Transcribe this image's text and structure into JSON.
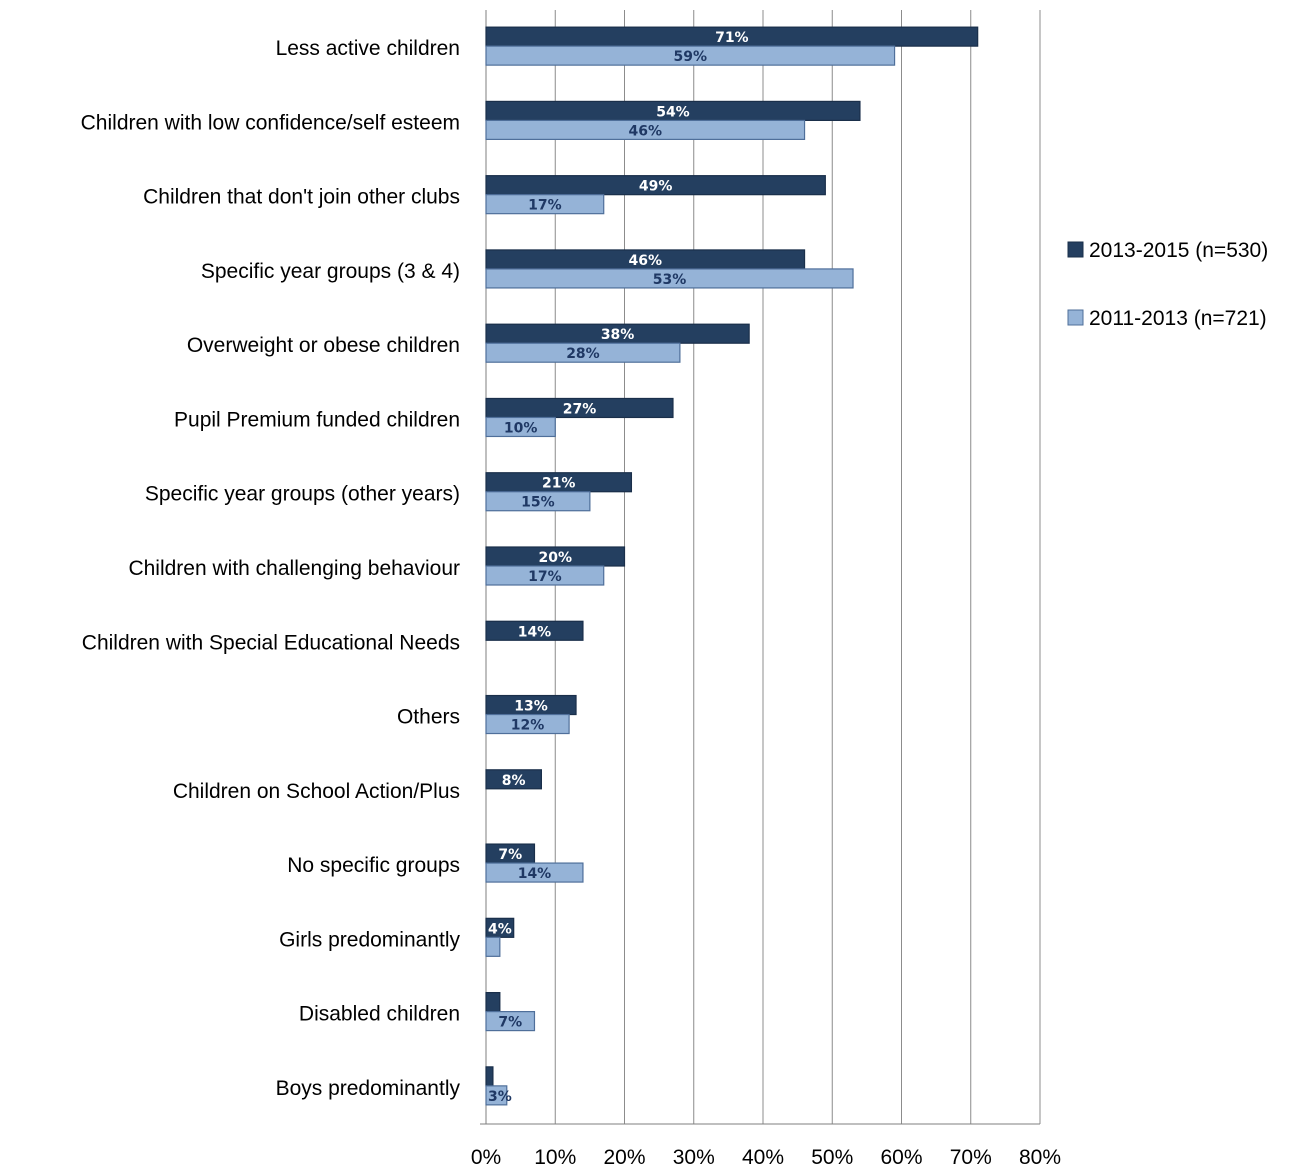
{
  "chart_data": {
    "type": "bar",
    "orientation": "horizontal",
    "categories": [
      "Less active children",
      "Children with low confidence/self esteem",
      "Children that don't join other clubs",
      "Specific year groups (3 & 4)",
      "Overweight or obese children",
      "Pupil Premium funded children",
      "Specific year groups (other years)",
      "Children with challenging behaviour",
      "Children with Special Educational Needs",
      "Others",
      "Children on School Action/Plus",
      "No specific groups",
      "Girls predominantly",
      "Disabled children",
      "Boys predominantly"
    ],
    "series": [
      {
        "name": "2013-2015 (n=530)",
        "color": "#243f60",
        "label_color": "#ffffff",
        "values": [
          71,
          54,
          49,
          46,
          38,
          27,
          21,
          20,
          14,
          13,
          8,
          7,
          4,
          2,
          1
        ],
        "labels": [
          "71%",
          "54%",
          "49%",
          "46%",
          "38%",
          "27%",
          "21%",
          "20%",
          "14%",
          "13%",
          "8%",
          "7%",
          "4%",
          "",
          ""
        ]
      },
      {
        "name": "2011-2013 (n=721)",
        "color": "#95b3d7",
        "label_color": "#1f3864",
        "values": [
          59,
          46,
          17,
          53,
          28,
          10,
          15,
          17,
          0,
          12,
          0,
          14,
          2,
          7,
          3
        ],
        "labels": [
          "59%",
          "46%",
          "17%",
          "53%",
          "28%",
          "10%",
          "15%",
          "17%",
          "",
          "12%",
          "",
          "14%",
          "",
          "7%",
          "3%"
        ]
      }
    ],
    "xlim": [
      0,
      80
    ],
    "x_ticks": [
      "0%",
      "10%",
      "20%",
      "30%",
      "40%",
      "50%",
      "60%",
      "70%",
      "80%"
    ],
    "grid": true,
    "legend_position": "right",
    "title": "",
    "xlabel": "",
    "ylabel": ""
  }
}
